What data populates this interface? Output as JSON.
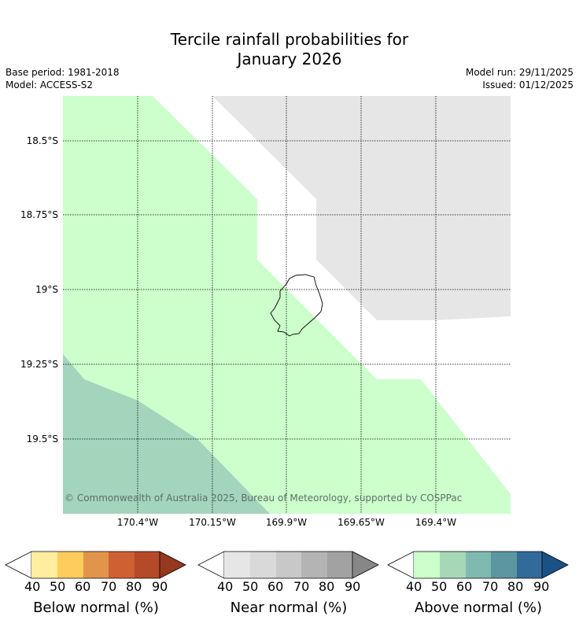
{
  "title_line1": "Tercile rainfall probabilities for",
  "title_line2": "January 2026",
  "meta": {
    "base_period": "Base period: 1981-2018",
    "model": "Model: ACCESS-S2",
    "model_run": "Model run: 29/11/2025",
    "issued": "Issued: 01/12/2025"
  },
  "map": {
    "lat_labels": [
      "18.5°S",
      "18.75°S",
      "19°S",
      "19.25°S",
      "19.5°S"
    ],
    "lon_labels": [
      "170.4°W",
      "170.15°W",
      "169.9°W",
      "169.65°W",
      "169.4°W"
    ],
    "copyright": "© Commonwealth of Australia 2025, Bureau of Meteorology, supported by COSPPac",
    "colors": {
      "above_40": "#ccffcc",
      "above_50": "#a3d4bc",
      "near_40": "#e6e6e6",
      "island_outline": "#000000"
    }
  },
  "legend": {
    "ticks": [
      "40",
      "50",
      "60",
      "70",
      "80",
      "90"
    ],
    "bars": [
      {
        "title": "Below normal (%)",
        "colors": [
          "#ffeda0",
          "#fecc5c",
          "#e0954a",
          "#cd6133",
          "#b44a28",
          "#96371f"
        ]
      },
      {
        "title": "Near normal (%)",
        "colors": [
          "#e6e6e6",
          "#d9d9d9",
          "#c8c8c8",
          "#b4b4b4",
          "#a2a2a2",
          "#878787"
        ]
      },
      {
        "title": "Above normal (%)",
        "colors": [
          "#ccffcc",
          "#a6d8b8",
          "#80b9b0",
          "#5c96a0",
          "#326a9a",
          "#1a5287"
        ]
      }
    ]
  }
}
